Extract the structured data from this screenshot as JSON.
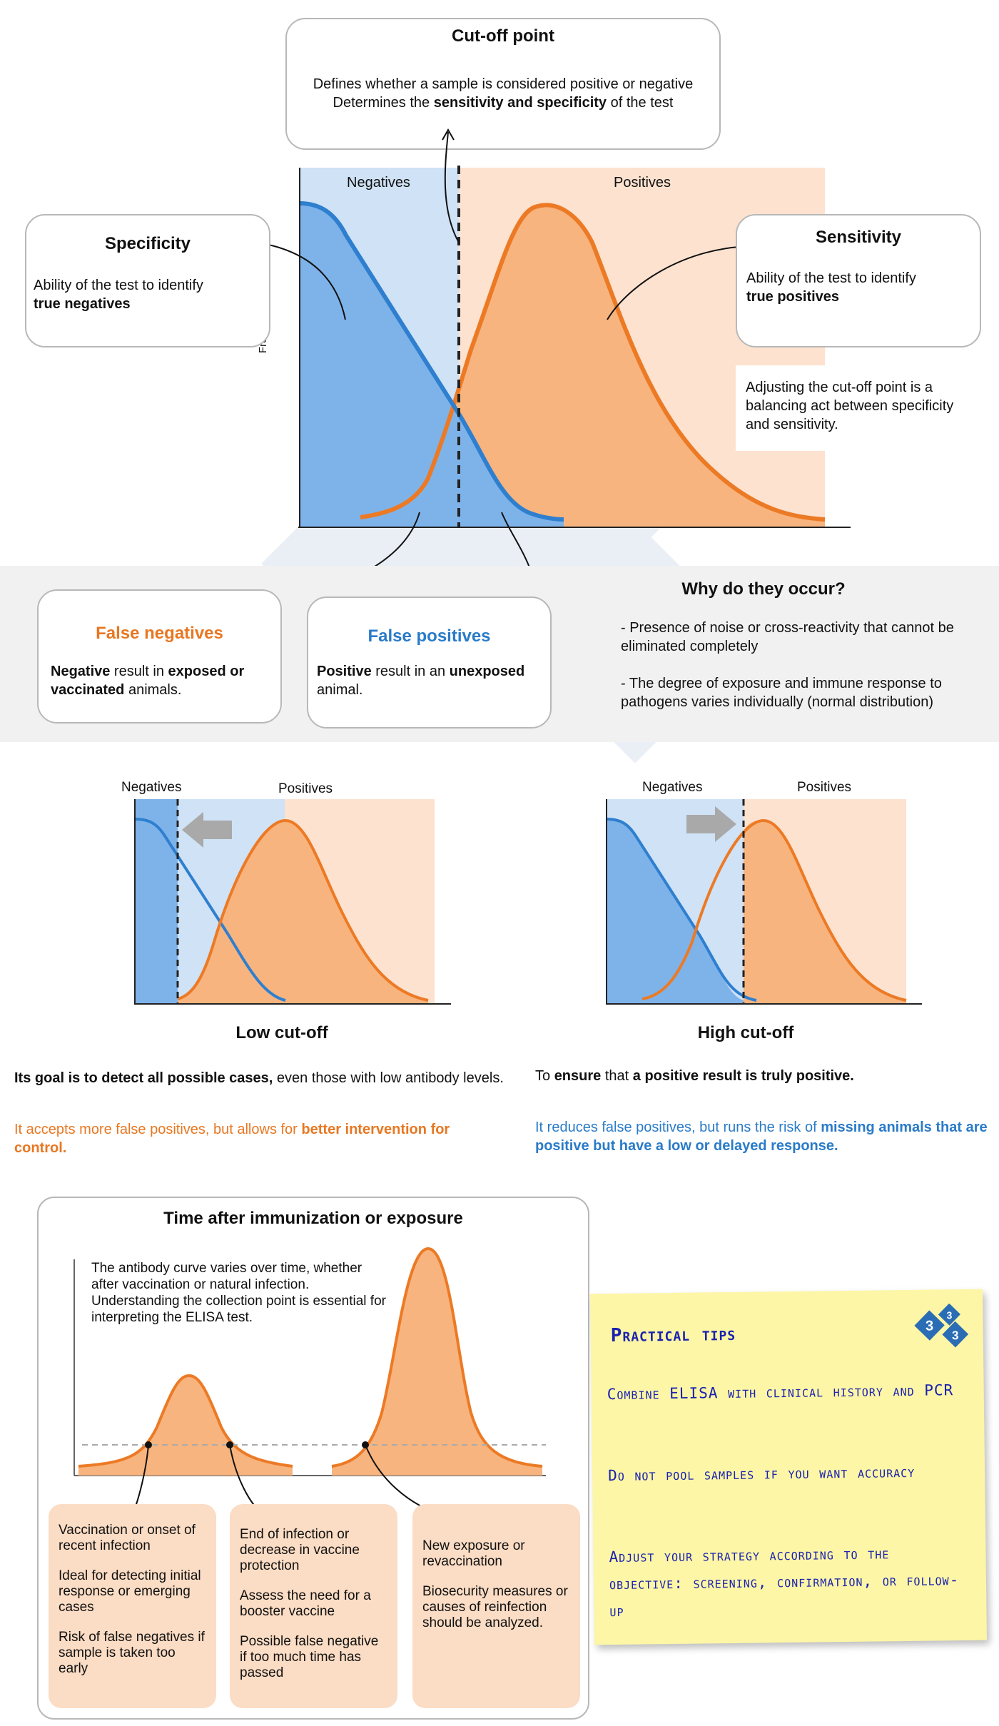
{
  "cutoff": {
    "title": "Cut-off point",
    "line1": "Defines whether a sample is considered positive or negative",
    "line2_pre": "Determines the ",
    "line2_bold": "sensitivity and specificity",
    "line2_post": " of the test"
  },
  "main_chart": {
    "negatives_label": "Negatives",
    "positives_label": "Positives",
    "y_axis_label": "Frequency"
  },
  "specificity": {
    "title": "Specificity",
    "text": "Ability of the test to identify",
    "bold": "true negatives"
  },
  "sensitivity": {
    "title": "Sensitivity",
    "text": "Ability of the test to identify",
    "bold": "true positives"
  },
  "balance_note": "Adjusting the cut-off point is a balancing act between specificity and sensitivity.",
  "false_negatives": {
    "title": "False negatives",
    "bold1": "Negative",
    "mid": " result in ",
    "bold2": "exposed or vaccinated",
    "end": " animals."
  },
  "false_positives": {
    "title": "False positives",
    "bold1": "Positive",
    "mid": " result in an ",
    "bold2": "unexposed",
    "end": " animal."
  },
  "why": {
    "title": "Why do they occur?",
    "point1": "- Presence of noise or cross-reactivity that cannot be eliminated completely",
    "point2": "- The degree of exposure and immune response to pathogens varies individually (normal distribution)"
  },
  "low_cutoff": {
    "negatives_label": "Negatives",
    "positives_label": "Positives",
    "title": "Low cut-off",
    "goal_bold": "Its goal is to detect all possible cases,",
    "goal_rest": " even those with low antibody levels.",
    "note_plain": "It accepts more false positives, but allows for ",
    "note_bold": "better intervention for control."
  },
  "high_cutoff": {
    "negatives_label": "Negatives",
    "positives_label": "Positives",
    "title": "High cut-off",
    "goal_pre": "To ",
    "goal_bold1": "ensure",
    "goal_mid": " that ",
    "goal_bold2": "a positive result is truly positive.",
    "note_plain": "It reduces false positives, but runs the risk of ",
    "note_bold": "missing animals that are positive but have a low or delayed response."
  },
  "time_panel": {
    "title": "Time after immunization or exposure",
    "intro": "The antibody curve varies over time, whether after vaccination or natural infection. Understanding the collection point is essential for interpreting the ELISA test.",
    "card1": [
      "Vaccination or onset of recent infection",
      "Ideal for detecting initial response or emerging cases",
      "Risk of false negatives if sample is taken too early"
    ],
    "card2": [
      "End of infection or decrease in vaccine protection",
      "Assess the need for a booster vaccine",
      "Possible false negative if too much time has passed"
    ],
    "card3": [
      "New exposure or revaccination",
      "Biosecurity measures or causes of reinfection should be analyzed."
    ]
  },
  "tips": {
    "title": "Practical tips",
    "tip1": "Combine ELISA with clinical history and PCR",
    "tip2": "Do not pool samples if you want accuracy",
    "tip3": "Adjust your strategy according to the objective: screening, confirmation, or follow-up",
    "logo_digit": "3"
  },
  "colors": {
    "blue_line": "#2f7fcf",
    "blue_fill": "#7eb3ea",
    "blue_bg": "#cfe2f6",
    "orange_line": "#ec7a25",
    "orange_fill": "#f8b47e",
    "orange_bg": "#fde2cf",
    "handwriting": "#1a22b0"
  }
}
